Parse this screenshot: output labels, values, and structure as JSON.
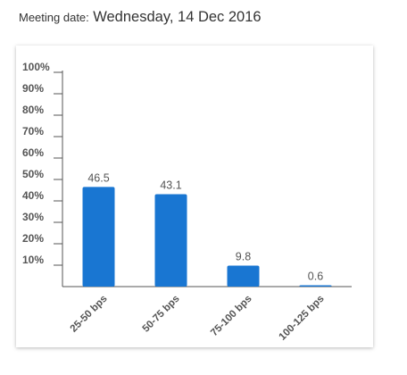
{
  "header": {
    "label": "Meeting date:",
    "date": "Wednesday, 14 Dec 2016"
  },
  "chart_data": {
    "type": "bar",
    "categories": [
      "25-50 bps",
      "50-75 bps",
      "75-100 bps",
      "100-125 bps"
    ],
    "values": [
      46.5,
      43.1,
      9.8,
      0.6
    ],
    "data_labels": [
      "46.5",
      "43.1",
      "9.8",
      "0.6"
    ],
    "y_ticks": [
      "10%",
      "20%",
      "30%",
      "40%",
      "50%",
      "60%",
      "70%",
      "80%",
      "90%",
      "100%"
    ],
    "ylim": [
      0,
      100
    ],
    "title": "",
    "xlabel": "",
    "ylabel": "",
    "grid": false,
    "legend": "none",
    "bar_color": "#1976d2",
    "axis_color": "#555555"
  }
}
